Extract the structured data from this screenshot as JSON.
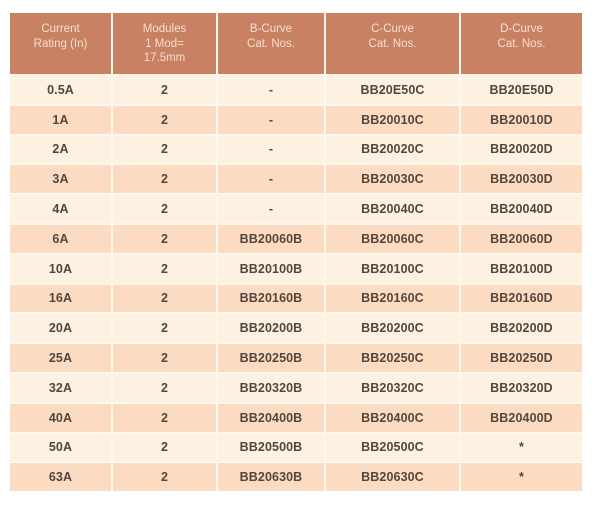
{
  "colors": {
    "header_bg": "#c98163",
    "header_text": "#f6dfce",
    "row_light": "#fdf2e2",
    "row_alt": "#fbdcc3",
    "body_text": "#55463c",
    "grid_line": "#fdf7ee",
    "page_bg": "#ffffff"
  },
  "table": {
    "headers": [
      "Current\nRating (In)",
      "Modules\n1 Mod=\n17.5mm",
      "B-Curve\nCat. Nos.",
      "C-Curve\nCat. Nos.",
      "D-Curve\nCat. Nos."
    ],
    "header_keys": [
      "current-rating",
      "modules",
      "b-curve-cat-no",
      "c-curve-cat-no",
      "d-curve-cat-no"
    ],
    "rows": [
      [
        "0.5A",
        "2",
        "-",
        "BB20E50C",
        "BB20E50D"
      ],
      [
        "1A",
        "2",
        "-",
        "BB20010C",
        "BB20010D"
      ],
      [
        "2A",
        "2",
        "-",
        "BB20020C",
        "BB20020D"
      ],
      [
        "3A",
        "2",
        "-",
        "BB20030C",
        "BB20030D"
      ],
      [
        "4A",
        "2",
        "-",
        "BB20040C",
        "BB20040D"
      ],
      [
        "6A",
        "2",
        "BB20060B",
        "BB20060C",
        "BB20060D"
      ],
      [
        "10A",
        "2",
        "BB20100B",
        "BB20100C",
        "BB20100D"
      ],
      [
        "16A",
        "2",
        "BB20160B",
        "BB20160C",
        "BB20160D"
      ],
      [
        "20A",
        "2",
        "BB20200B",
        "BB20200C",
        "BB20200D"
      ],
      [
        "25A",
        "2",
        "BB20250B",
        "BB20250C",
        "BB20250D"
      ],
      [
        "32A",
        "2",
        "BB20320B",
        "BB20320C",
        "BB20320D"
      ],
      [
        "40A",
        "2",
        "BB20400B",
        "BB20400C",
        "BB20400D"
      ],
      [
        "50A",
        "2",
        "BB20500B",
        "BB20500C",
        "*"
      ],
      [
        "63A",
        "2",
        "BB20630B",
        "BB20630C",
        "*"
      ]
    ]
  }
}
